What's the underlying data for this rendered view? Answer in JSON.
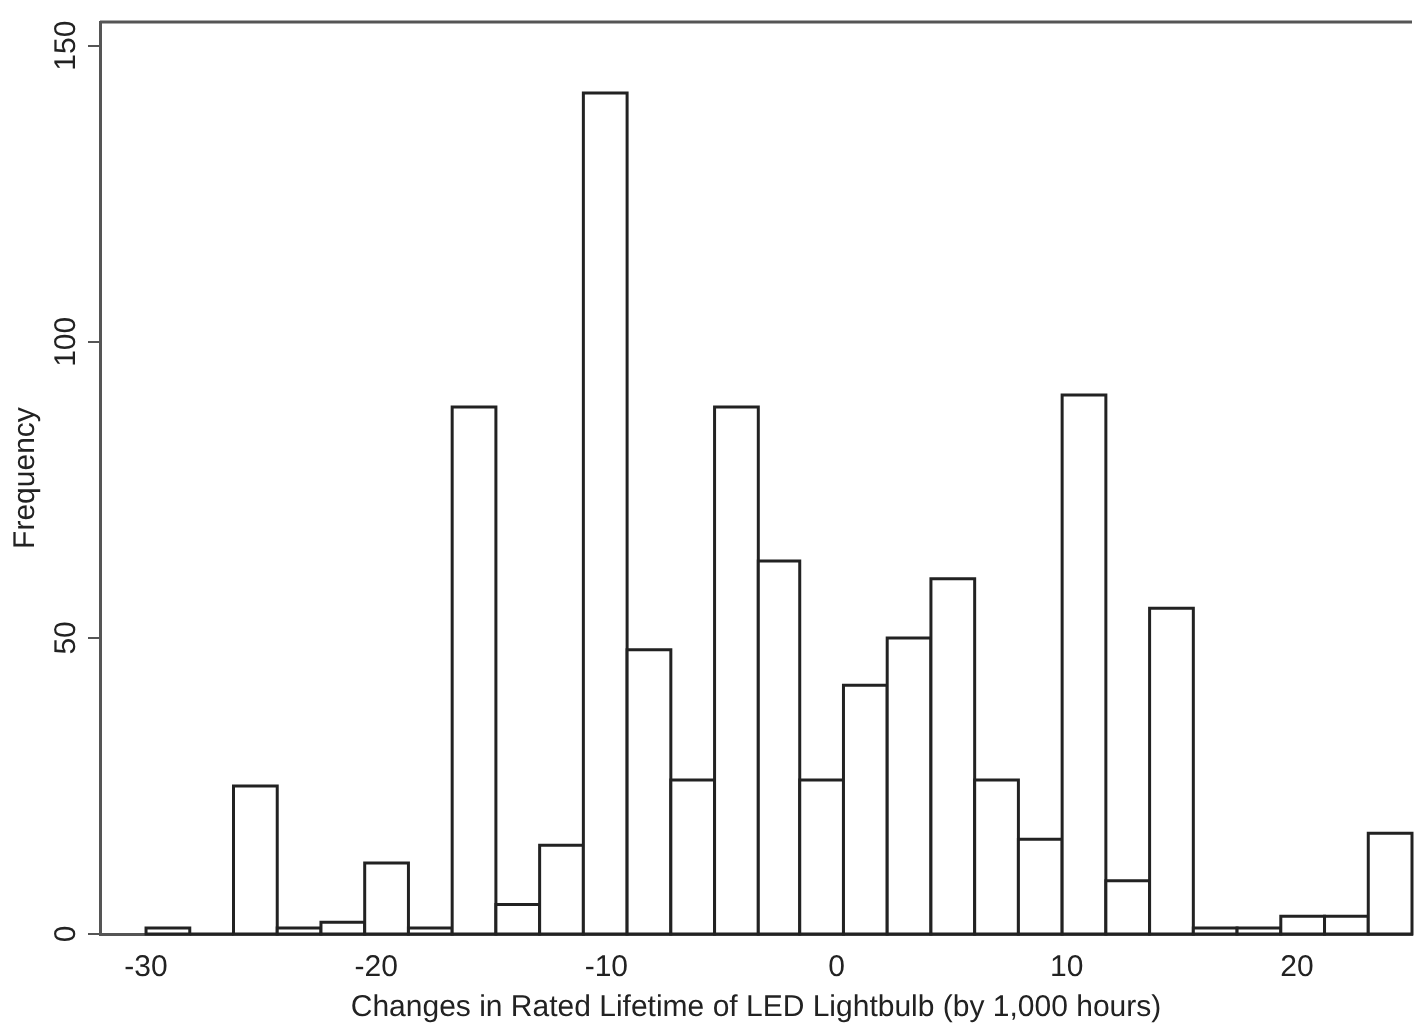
{
  "chart_data": {
    "type": "histogram",
    "xlabel": "Changes in Rated Lifetime of LED Lightbulb (by 1,000 hours)",
    "ylabel": "Frequency",
    "bins": [
      -30,
      -28.1,
      -26.2,
      -24.3,
      -22.4,
      -20.5,
      -18.6,
      -16.7,
      -14.8,
      -12.9,
      -11.0,
      -9.1,
      -7.2,
      -5.3,
      -3.4,
      -1.6,
      0.3,
      2.2,
      4.1,
      6.0,
      7.9,
      9.8,
      11.7,
      13.6,
      15.5,
      17.4,
      19.3,
      21.2,
      23.1,
      25
    ],
    "values": [
      1,
      0,
      25,
      1,
      2,
      12,
      1,
      89,
      5,
      15,
      142,
      48,
      26,
      89,
      63,
      26,
      42,
      50,
      60,
      26,
      16,
      91,
      9,
      55,
      1,
      1,
      3,
      3,
      17
    ],
    "color": "#222222",
    "xlim": [
      -32,
      25
    ],
    "xticks": [
      -30,
      -20,
      -10,
      0,
      10,
      20
    ],
    "ylim": [
      0,
      154
    ],
    "yticks": [
      0,
      50,
      100,
      150
    ],
    "grid": false,
    "legend": false
  }
}
